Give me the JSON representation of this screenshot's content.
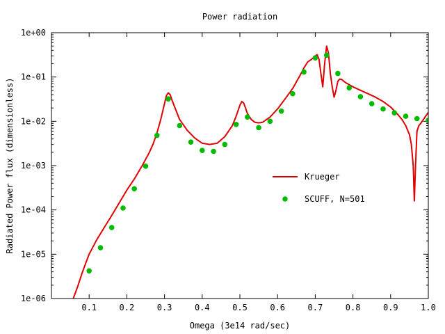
{
  "chart_data": {
    "type": "line",
    "title": "Power radiation",
    "xlabel": "Omega (3e14 rad/sec)",
    "ylabel": "Radiated Power flux (dimensionless)",
    "xlim": [
      0,
      1.0
    ],
    "ylim": [
      1e-06,
      1.0
    ],
    "yscale": "log",
    "grid": false,
    "legend_position": "center-right",
    "x_ticks": [
      "0.1",
      "0.2",
      "0.3",
      "0.4",
      "0.5",
      "0.6",
      "0.7",
      "0.8",
      "0.9",
      "1.0"
    ],
    "x_tick_values": [
      0.1,
      0.2,
      0.3,
      0.4,
      0.5,
      0.6,
      0.7,
      0.8,
      0.9,
      1.0
    ],
    "y_ticks": [
      "1e-06",
      "1e-05",
      "1e-04",
      "1e-03",
      "1e-02",
      "1e-01",
      "1e+00"
    ],
    "y_tick_values": [
      1e-06,
      1e-05,
      0.0001,
      0.001,
      0.01,
      0.1,
      1.0
    ],
    "series": [
      {
        "name": "Krueger",
        "kind": "line",
        "color": "#e00000",
        "x": [
          0.058,
          0.07,
          0.08,
          0.09,
          0.1,
          0.12,
          0.14,
          0.16,
          0.18,
          0.2,
          0.22,
          0.24,
          0.26,
          0.27,
          0.28,
          0.29,
          0.3,
          0.305,
          0.31,
          0.315,
          0.32,
          0.33,
          0.34,
          0.36,
          0.38,
          0.4,
          0.42,
          0.44,
          0.46,
          0.48,
          0.49,
          0.5,
          0.505,
          0.51,
          0.515,
          0.52,
          0.53,
          0.54,
          0.55,
          0.56,
          0.58,
          0.6,
          0.62,
          0.64,
          0.66,
          0.67,
          0.68,
          0.69,
          0.7,
          0.705,
          0.71,
          0.715,
          0.72,
          0.725,
          0.73,
          0.735,
          0.74,
          0.745,
          0.75,
          0.755,
          0.76,
          0.765,
          0.77,
          0.78,
          0.8,
          0.82,
          0.84,
          0.86,
          0.88,
          0.9,
          0.92,
          0.93,
          0.94,
          0.95,
          0.955,
          0.96,
          0.963,
          0.966,
          0.97,
          0.975,
          0.98,
          0.99,
          1.0
        ],
        "y": [
          1e-06,
          1.9e-06,
          3.5e-06,
          6e-06,
          1e-05,
          2.1e-05,
          4e-05,
          7.5e-05,
          0.000145,
          0.00028,
          0.0005,
          0.00097,
          0.002,
          0.0031,
          0.0055,
          0.011,
          0.025,
          0.038,
          0.044,
          0.04,
          0.03,
          0.018,
          0.011,
          0.0063,
          0.0042,
          0.0032,
          0.003,
          0.0032,
          0.0045,
          0.008,
          0.013,
          0.023,
          0.028,
          0.026,
          0.02,
          0.015,
          0.011,
          0.0095,
          0.0092,
          0.0095,
          0.0125,
          0.019,
          0.032,
          0.055,
          0.11,
          0.16,
          0.22,
          0.25,
          0.3,
          0.32,
          0.25,
          0.12,
          0.06,
          0.2,
          0.5,
          0.35,
          0.12,
          0.06,
          0.035,
          0.05,
          0.08,
          0.09,
          0.088,
          0.075,
          0.06,
          0.05,
          0.042,
          0.035,
          0.028,
          0.021,
          0.014,
          0.011,
          0.008,
          0.005,
          0.003,
          0.001,
          0.00016,
          0.001,
          0.006,
          0.008,
          0.009,
          0.012,
          0.016
        ]
      },
      {
        "name": "SCUFF, N=501",
        "kind": "points",
        "color": "#00bb00",
        "x": [
          0.1,
          0.13,
          0.16,
          0.19,
          0.22,
          0.25,
          0.28,
          0.31,
          0.34,
          0.37,
          0.4,
          0.43,
          0.46,
          0.49,
          0.52,
          0.55,
          0.58,
          0.61,
          0.64,
          0.67,
          0.7,
          0.73,
          0.76,
          0.79,
          0.82,
          0.85,
          0.88,
          0.91,
          0.94,
          0.97,
          1.0
        ],
        "y": [
          4.2e-06,
          1.4e-05,
          4e-05,
          0.00011,
          0.0003,
          0.00097,
          0.0048,
          0.032,
          0.008,
          0.0034,
          0.0022,
          0.0021,
          0.003,
          0.0085,
          0.0125,
          0.0072,
          0.01,
          0.017,
          0.042,
          0.13,
          0.27,
          0.31,
          0.12,
          0.057,
          0.036,
          0.025,
          0.019,
          0.0155,
          0.013,
          0.0115,
          0.0105
        ]
      }
    ]
  }
}
